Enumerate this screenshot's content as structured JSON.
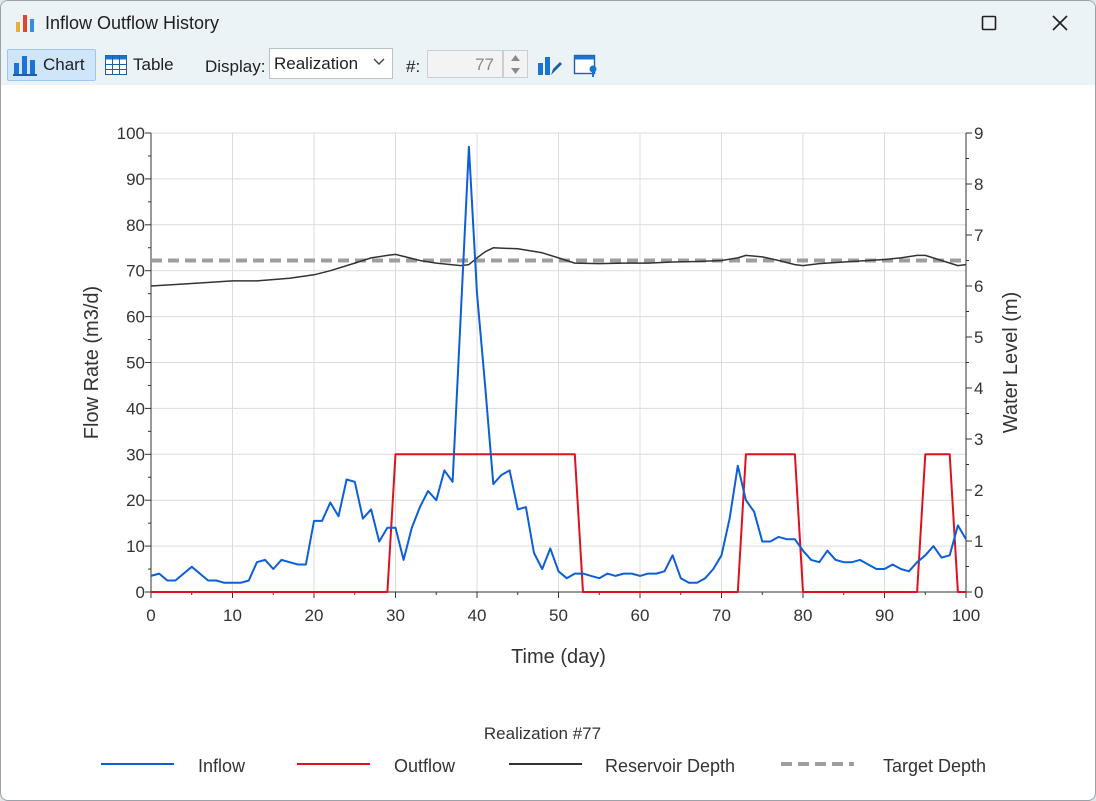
{
  "window": {
    "title": "Inflow Outflow History",
    "icons": [
      "bar-chart-app-icon",
      "maximize-icon",
      "close-icon"
    ]
  },
  "toolbar": {
    "chart_label": "Chart",
    "table_label": "Table",
    "display_label": "Display:",
    "display_value": "Realization",
    "number_label": "#:",
    "number_value": "77",
    "icons": [
      "chart-icon",
      "table-icon",
      "chevron-down-icon",
      "spin-up-icon",
      "spin-down-icon",
      "edit-chart-icon",
      "window-settings-icon"
    ]
  },
  "chart_data": {
    "type": "line",
    "title": "",
    "subtitle": "Realization #77",
    "xlabel": "Time (day)",
    "ylabel": "Flow Rate (m3/d)",
    "y2label": "Water Level (m)",
    "xlim": [
      0,
      100
    ],
    "ylim": [
      0,
      100
    ],
    "y2lim": [
      0,
      9
    ],
    "x_ticks": [
      "0",
      "10",
      "20",
      "30",
      "40",
      "50",
      "60",
      "70",
      "80",
      "90",
      "100"
    ],
    "y_ticks": [
      "0",
      "10",
      "20",
      "30",
      "40",
      "50",
      "60",
      "70",
      "80",
      "90",
      "100"
    ],
    "y2_ticks": [
      "0",
      "1",
      "2",
      "3",
      "4",
      "5",
      "6",
      "7",
      "8",
      "9"
    ],
    "grid": true,
    "legend_position": "bottom",
    "series": [
      {
        "name": "Inflow",
        "axis": "left",
        "color": "#0d5fd8",
        "style": "solid",
        "x": [
          0,
          1,
          2,
          3,
          4,
          5,
          6,
          7,
          8,
          9,
          10,
          11,
          12,
          13,
          14,
          15,
          16,
          17,
          18,
          19,
          20,
          21,
          22,
          23,
          24,
          25,
          26,
          27,
          28,
          29,
          30,
          31,
          32,
          33,
          34,
          35,
          36,
          37,
          38,
          39,
          40,
          41,
          42,
          43,
          44,
          45,
          46,
          47,
          48,
          49,
          50,
          51,
          52,
          53,
          54,
          55,
          56,
          57,
          58,
          59,
          60,
          61,
          62,
          63,
          64,
          65,
          66,
          67,
          68,
          69,
          70,
          71,
          72,
          73,
          74,
          75,
          76,
          77,
          78,
          79,
          80,
          81,
          82,
          83,
          84,
          85,
          86,
          87,
          88,
          89,
          90,
          91,
          92,
          93,
          94,
          95,
          96,
          97,
          98,
          99,
          100
        ],
        "values": [
          3.5,
          4,
          2.5,
          2.5,
          4,
          5.5,
          4,
          2.5,
          2.5,
          2,
          2,
          2,
          2.5,
          6.5,
          7,
          5,
          7,
          6.5,
          6,
          6,
          15.5,
          15.5,
          19.5,
          16.5,
          24.5,
          24,
          16,
          18,
          11,
          14,
          14,
          7,
          14,
          18.5,
          22,
          20,
          26.5,
          24,
          60,
          97,
          65,
          45,
          23.5,
          25.5,
          26.5,
          18,
          18.5,
          8.5,
          5,
          9.5,
          4.5,
          3,
          4,
          4,
          3.5,
          3,
          4,
          3.5,
          4,
          4,
          3.5,
          4,
          4,
          4.5,
          8,
          3,
          2,
          2,
          3,
          5,
          8,
          16,
          27.5,
          20,
          17.5,
          11,
          11,
          12,
          11.5,
          11.5,
          9,
          7,
          6.5,
          9,
          7,
          6.5,
          6.5,
          7,
          6,
          5,
          5,
          6,
          5,
          4.5,
          6.5,
          8,
          10,
          7.5,
          8,
          14.5,
          11.5
        ]
      },
      {
        "name": "Outflow",
        "axis": "left",
        "color": "#e0111f",
        "style": "solid",
        "x": [
          0,
          29,
          30,
          52,
          53,
          72,
          73,
          79,
          80,
          94,
          95,
          98,
          99,
          100
        ],
        "values": [
          0,
          0,
          30,
          30,
          0,
          0,
          30,
          30,
          0,
          0,
          30,
          30,
          0,
          0
        ]
      },
      {
        "name": "Reservoir Depth",
        "axis": "right",
        "color": "#333333",
        "style": "solid",
        "x": [
          0,
          5,
          10,
          13,
          17,
          20,
          22,
          25,
          27,
          29,
          30,
          31,
          33,
          35,
          38,
          39,
          40,
          41,
          42,
          45,
          48,
          50,
          52,
          55,
          58,
          61,
          64,
          67,
          70,
          72,
          73,
          75,
          77,
          79,
          80,
          82,
          85,
          88,
          90,
          92,
          94,
          95,
          97,
          99,
          100
        ],
        "values": [
          6.0,
          6.05,
          6.1,
          6.1,
          6.15,
          6.22,
          6.3,
          6.45,
          6.55,
          6.6,
          6.62,
          6.58,
          6.5,
          6.45,
          6.4,
          6.42,
          6.55,
          6.67,
          6.75,
          6.73,
          6.65,
          6.55,
          6.45,
          6.44,
          6.45,
          6.45,
          6.47,
          6.48,
          6.5,
          6.55,
          6.6,
          6.57,
          6.5,
          6.42,
          6.4,
          6.44,
          6.47,
          6.5,
          6.52,
          6.55,
          6.6,
          6.6,
          6.5,
          6.4,
          6.42
        ]
      },
      {
        "name": "Target Depth",
        "axis": "right",
        "color": "#9e9e9e",
        "style": "dashed",
        "x": [
          0,
          100
        ],
        "values": [
          6.5,
          6.5
        ]
      }
    ]
  }
}
